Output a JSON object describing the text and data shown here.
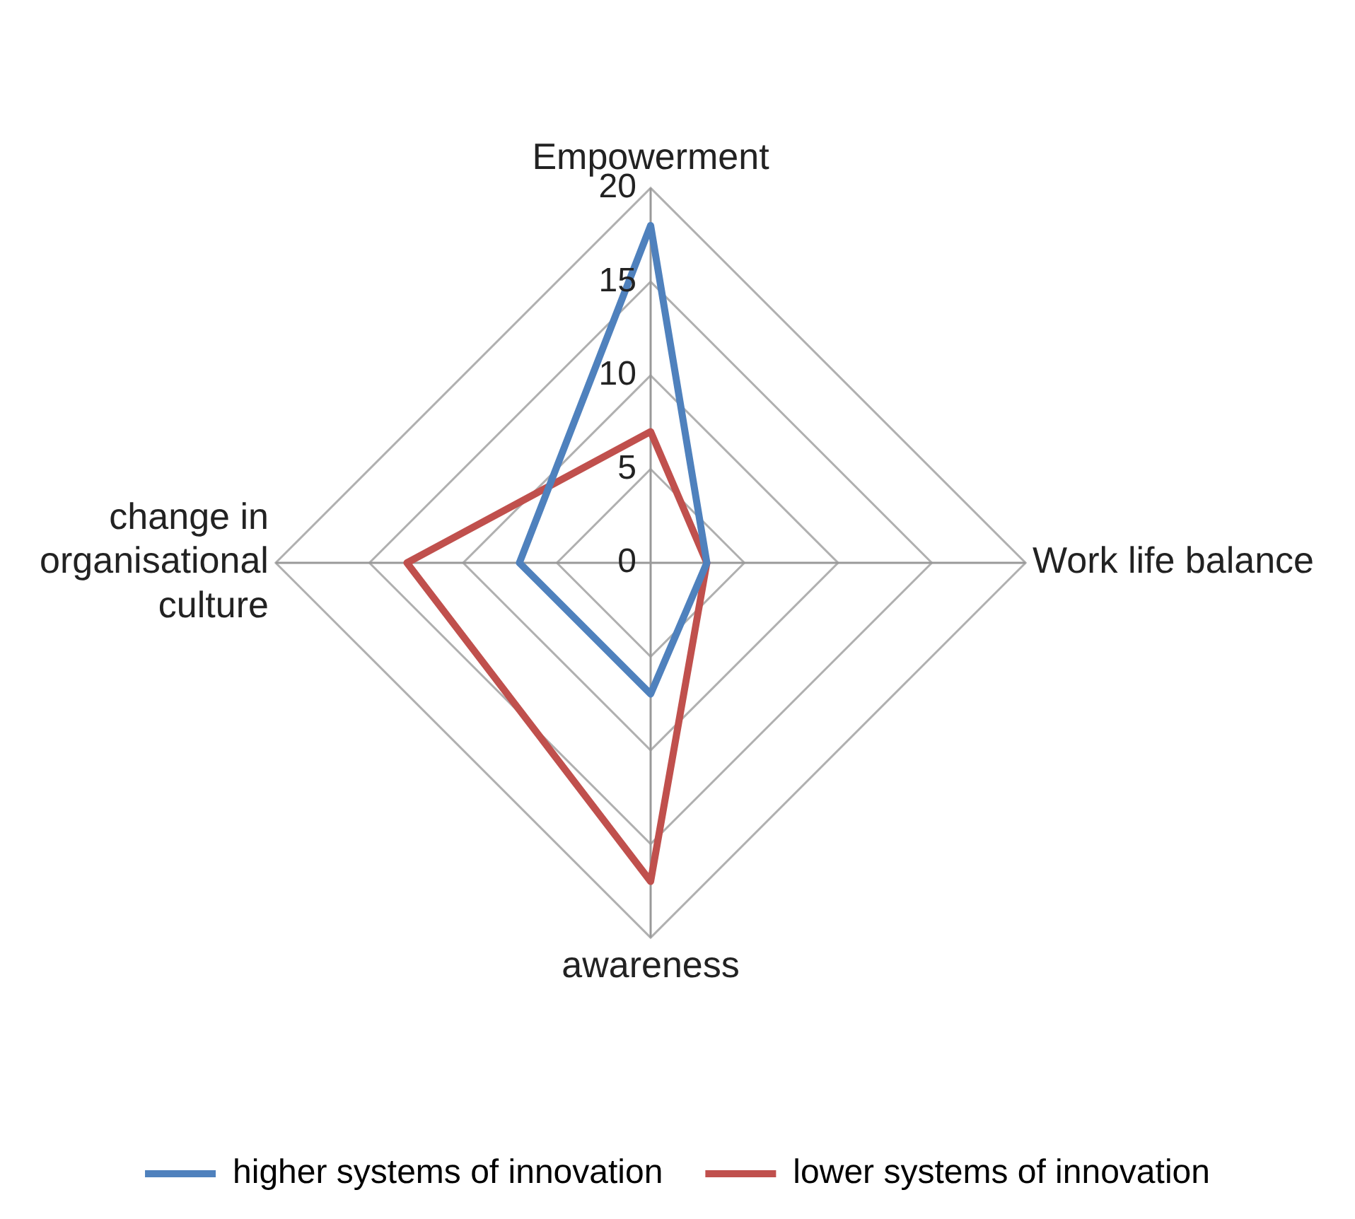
{
  "chart_data": {
    "type": "radar",
    "categories": [
      "Empowerment",
      "Work life balance",
      "awareness",
      "change in organisational culture"
    ],
    "series": [
      {
        "name": "higher systems of innovation",
        "color": "#4f81bd",
        "values": [
          18,
          3,
          7,
          7
        ]
      },
      {
        "name": "lower systems of innovation",
        "color": "#c0504d",
        "values": [
          7,
          3,
          17,
          13
        ]
      }
    ],
    "ylim": [
      0,
      20
    ],
    "yticks": [
      0,
      5,
      10,
      15,
      20
    ],
    "grid": true,
    "legend": "bottom",
    "marker": "none"
  }
}
